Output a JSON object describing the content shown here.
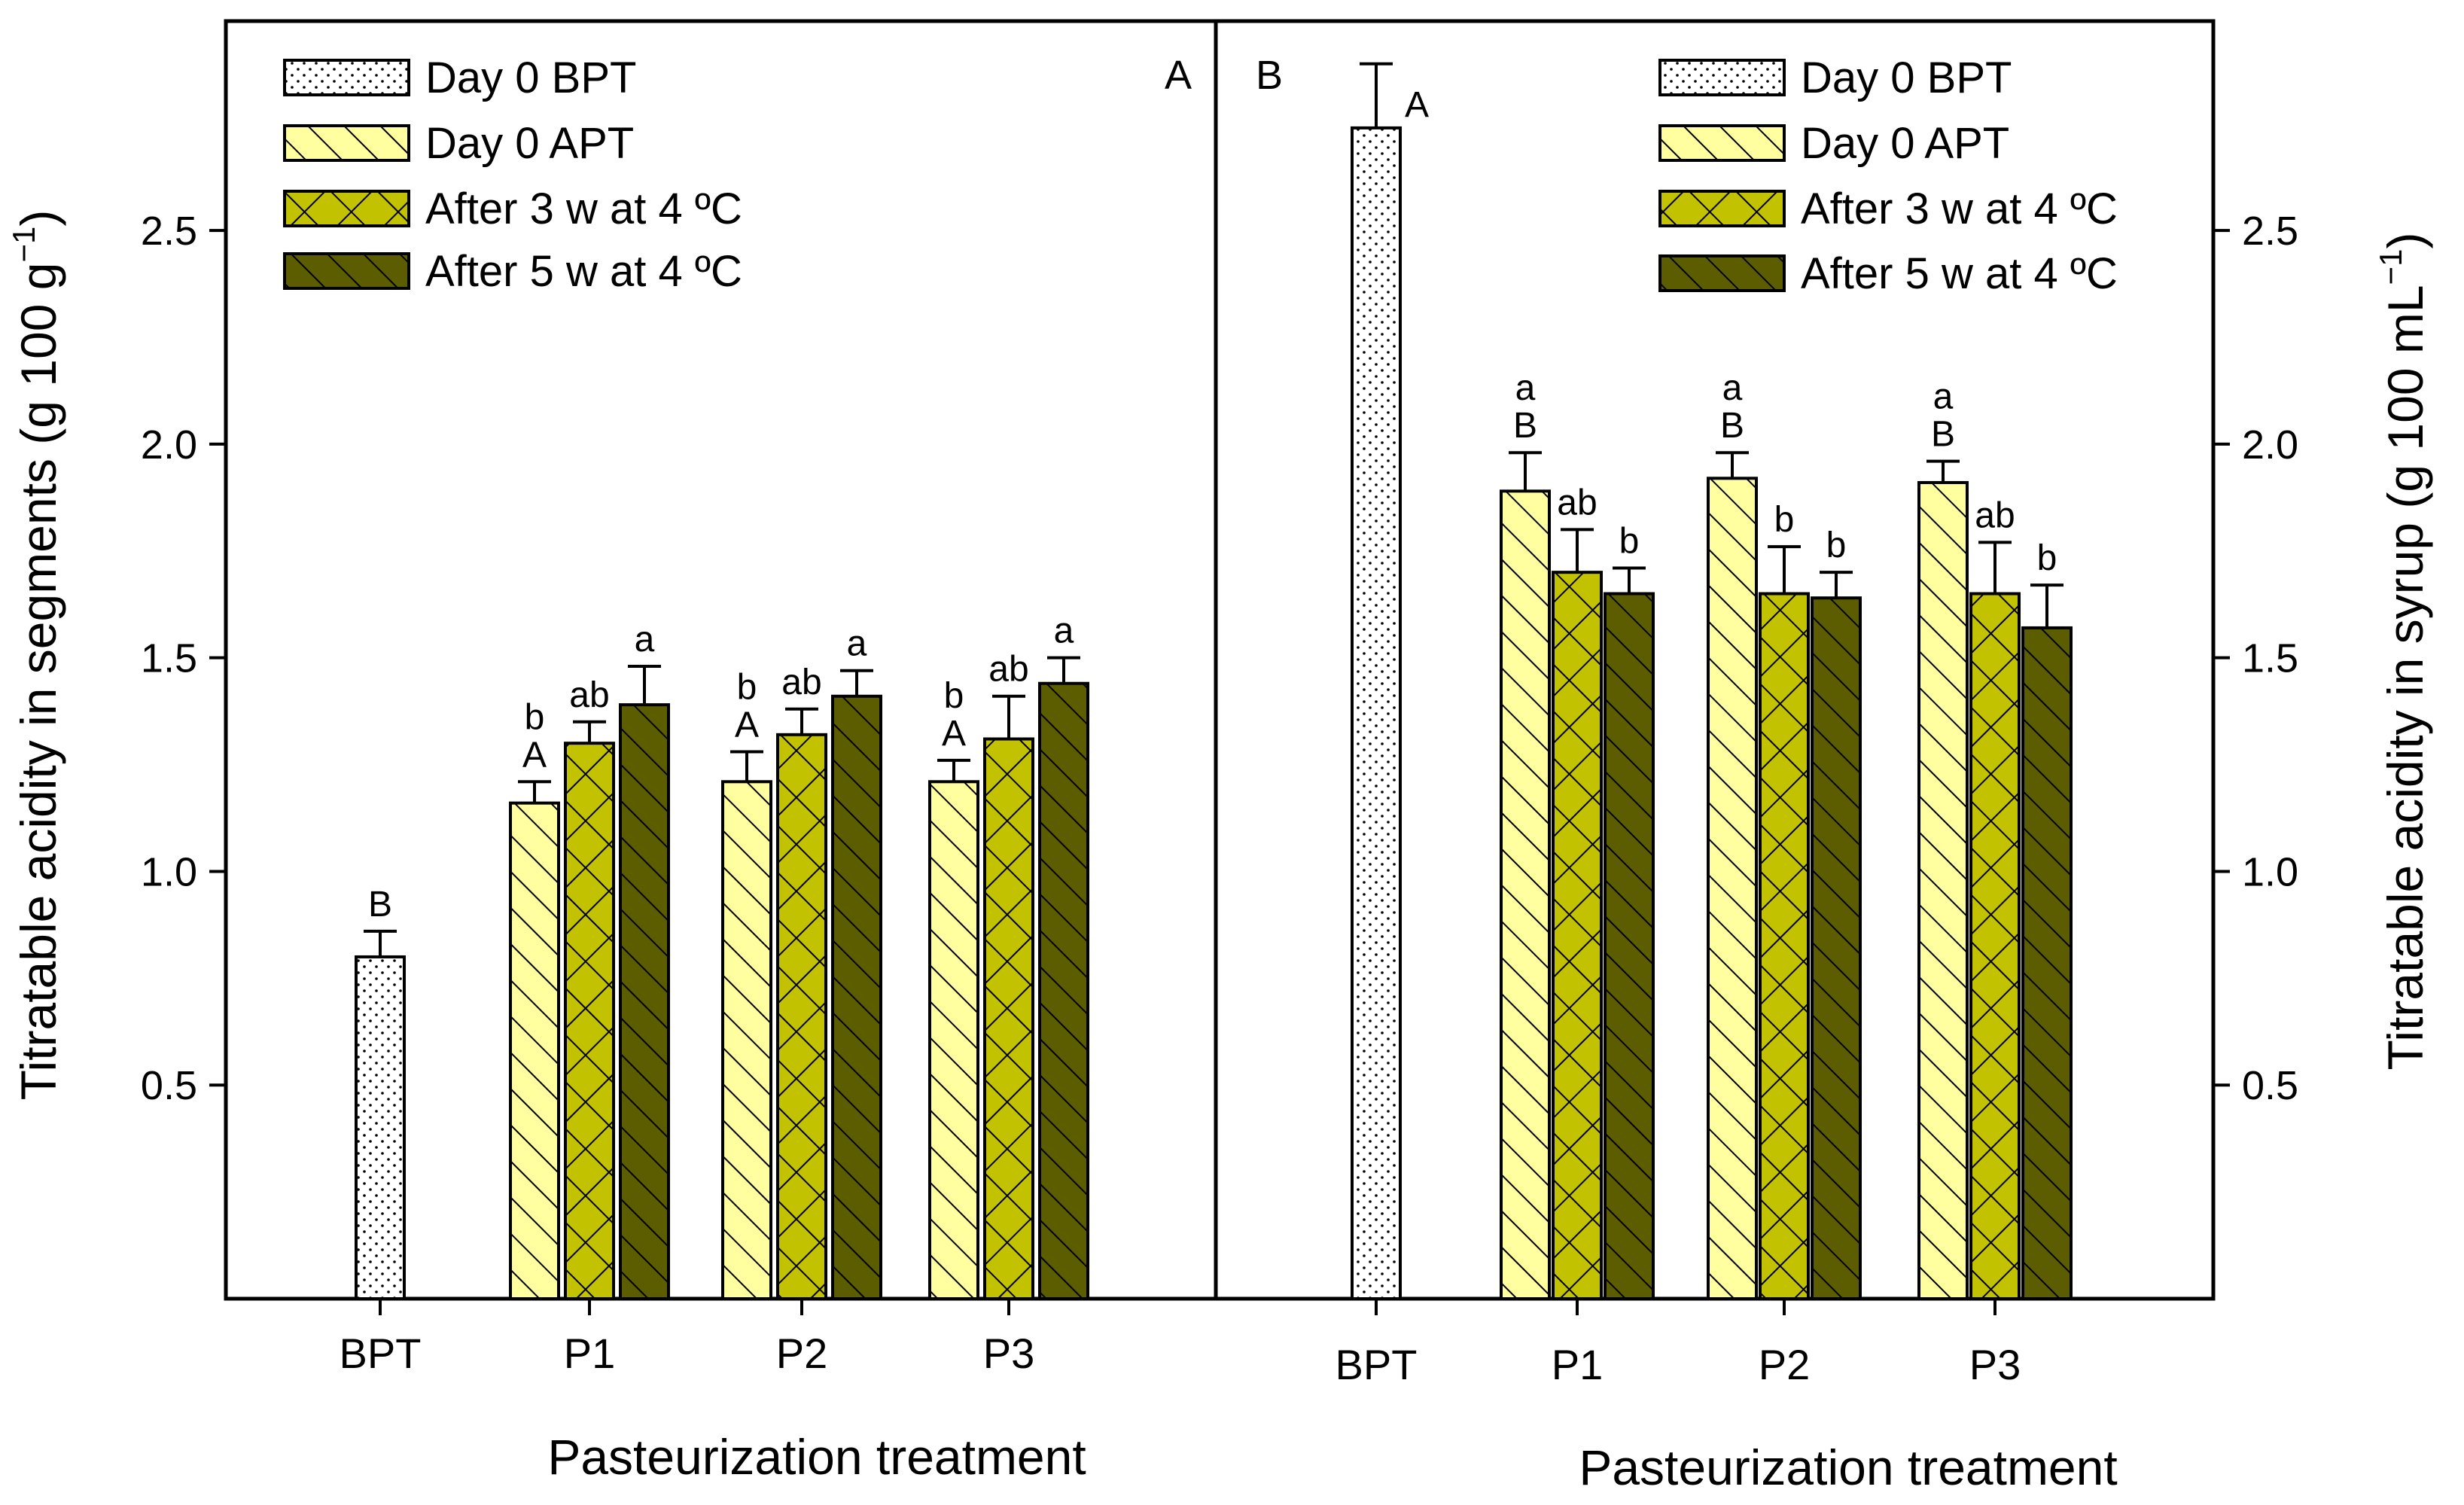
{
  "figure": {
    "palette": {
      "bpt_fill": "#ffffff",
      "apt_fill": "#ffffa0",
      "w3_fill": "#c2c200",
      "w5_fill": "#5c5c00",
      "stroke": "#000000"
    }
  },
  "chart_data": [
    {
      "type": "bar",
      "panel": "A",
      "panel_label": "A",
      "title": "",
      "xlabel": "Pasteurization treatment",
      "ylabel": "Titratable acidity in segments (g 100 g",
      "ylabel_sup": "−1",
      "ylabel_close": ")",
      "ylim": [
        0,
        2.99
      ],
      "yticks": [
        0.5,
        1.0,
        1.5,
        2.0,
        2.5
      ],
      "ytick_labels": [
        "0.5",
        "1.0",
        "1.5",
        "2.0",
        "2.5"
      ],
      "categories": [
        "BPT",
        "P1",
        "P2",
        "P3"
      ],
      "legend": [
        "Day 0 BPT",
        "Day 0 APT",
        "After 3 w at 4 ºC",
        "After 5 w at 4 ºC"
      ],
      "legend_position": "top-left",
      "bars": [
        {
          "category": "BPT",
          "series": "Day 0 BPT",
          "value": 0.8,
          "error": 0.06,
          "letters": [
            "B"
          ]
        },
        {
          "category": "P1",
          "series": "Day 0 APT",
          "value": 1.16,
          "error": 0.05,
          "letters": [
            "b",
            "A"
          ]
        },
        {
          "category": "P1",
          "series": "After 3 w at 4 ºC",
          "value": 1.3,
          "error": 0.05,
          "letters": [
            "ab"
          ]
        },
        {
          "category": "P1",
          "series": "After 5 w at 4 ºC",
          "value": 1.39,
          "error": 0.09,
          "letters": [
            "a"
          ]
        },
        {
          "category": "P2",
          "series": "Day 0 APT",
          "value": 1.21,
          "error": 0.07,
          "letters": [
            "b",
            "A"
          ]
        },
        {
          "category": "P2",
          "series": "After 3 w at 4 ºC",
          "value": 1.32,
          "error": 0.06,
          "letters": [
            "ab"
          ]
        },
        {
          "category": "P2",
          "series": "After 5 w at 4 ºC",
          "value": 1.41,
          "error": 0.06,
          "letters": [
            "a"
          ]
        },
        {
          "category": "P3",
          "series": "Day 0 APT",
          "value": 1.21,
          "error": 0.05,
          "letters": [
            "b",
            "A"
          ]
        },
        {
          "category": "P3",
          "series": "After 3 w at 4 ºC",
          "value": 1.31,
          "error": 0.1,
          "letters": [
            "ab"
          ]
        },
        {
          "category": "P3",
          "series": "After 5 w at 4 ºC",
          "value": 1.44,
          "error": 0.06,
          "letters": [
            "a"
          ]
        }
      ]
    },
    {
      "type": "bar",
      "panel": "B",
      "panel_label": "B",
      "title": "",
      "xlabel": "Pasteurization treatment",
      "ylabel": "Titratable acidity in syrup (g 100 mL",
      "ylabel_sup": "−1",
      "ylabel_close": ")",
      "ylim": [
        0,
        2.99
      ],
      "yticks": [
        0.5,
        1.0,
        1.5,
        2.0,
        2.5
      ],
      "ytick_labels": [
        "0.5",
        "1.0",
        "1.5",
        "2.0",
        "2.5"
      ],
      "categories": [
        "BPT",
        "P1",
        "P2",
        "P3"
      ],
      "legend": [
        "Day 0 BPT",
        "Day 0 APT",
        "After 3 w at 4 ºC",
        "After 5 w at 4 ºC"
      ],
      "legend_position": "top-right",
      "bars": [
        {
          "category": "BPT",
          "series": "Day 0 BPT",
          "value": 2.74,
          "error": 0.15,
          "letters": [
            "A"
          ]
        },
        {
          "category": "P1",
          "series": "Day 0 APT",
          "value": 1.89,
          "error": 0.09,
          "letters": [
            "a",
            "B"
          ]
        },
        {
          "category": "P1",
          "series": "After 3 w at 4 ºC",
          "value": 1.7,
          "error": 0.1,
          "letters": [
            "ab"
          ]
        },
        {
          "category": "P1",
          "series": "After 5 w at 4 ºC",
          "value": 1.65,
          "error": 0.06,
          "letters": [
            "b"
          ]
        },
        {
          "category": "P2",
          "series": "Day 0 APT",
          "value": 1.92,
          "error": 0.06,
          "letters": [
            "a",
            "B"
          ]
        },
        {
          "category": "P2",
          "series": "After 3 w at 4 ºC",
          "value": 1.65,
          "error": 0.11,
          "letters": [
            "b"
          ]
        },
        {
          "category": "P2",
          "series": "After 5 w at 4 ºC",
          "value": 1.64,
          "error": 0.06,
          "letters": [
            "b"
          ]
        },
        {
          "category": "P3",
          "series": "Day 0 APT",
          "value": 1.91,
          "error": 0.05,
          "letters": [
            "a",
            "B"
          ]
        },
        {
          "category": "P3",
          "series": "After 3 w at 4 ºC",
          "value": 1.65,
          "error": 0.12,
          "letters": [
            "ab"
          ]
        },
        {
          "category": "P3",
          "series": "After 5 w at 4 ºC",
          "value": 1.57,
          "error": 0.1,
          "letters": [
            "b"
          ]
        }
      ]
    }
  ]
}
